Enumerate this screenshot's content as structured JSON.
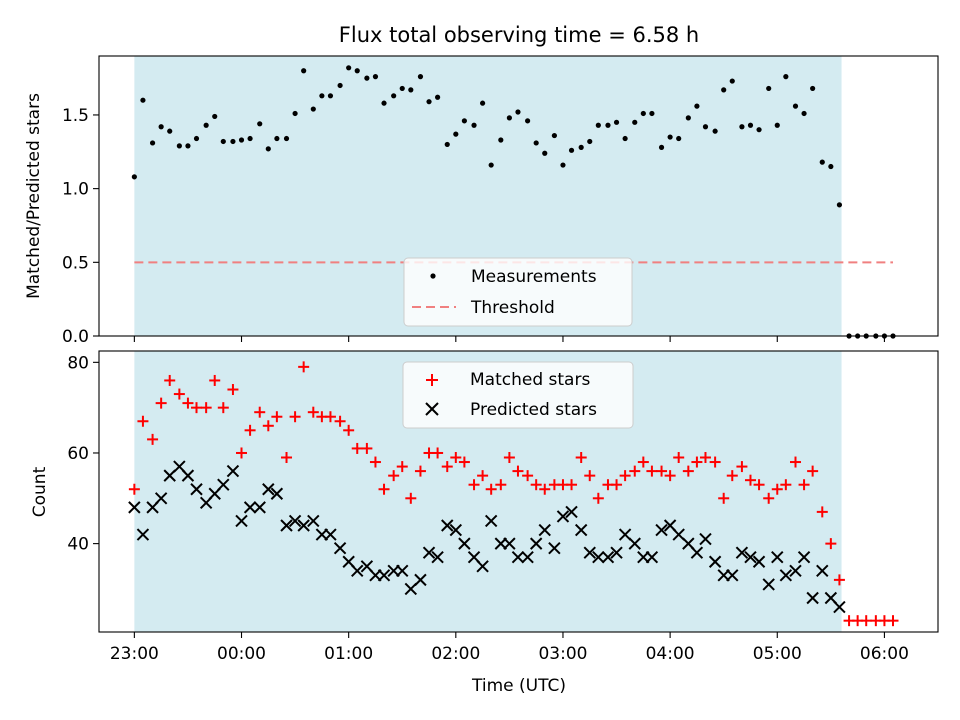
{
  "title": "Flux total observing time = 6.58 h",
  "colors": {
    "shade": "#d4ebf1",
    "measurement": "#000000",
    "threshold": "#f08080",
    "matched": "#ff0000",
    "predicted": "#000000"
  },
  "chart_data": [
    {
      "type": "scatter",
      "ylabel": "Matched/Predicted stars",
      "ylim": [
        0,
        1.9
      ],
      "yticks": [
        0.0,
        0.5,
        1.0,
        1.5
      ],
      "ytick_labels": [
        "0.0",
        "0.5",
        "1.0",
        "1.5"
      ],
      "xlim": [
        -0.33,
        7.5
      ],
      "shaded_span": [
        0.0,
        6.6
      ],
      "legend_placement": "lower-center",
      "series": [
        {
          "name": "Measurements",
          "marker": "dot",
          "x": [
            0.0,
            0.08,
            0.17,
            0.25,
            0.33,
            0.42,
            0.5,
            0.58,
            0.67,
            0.75,
            0.83,
            0.92,
            1.0,
            1.08,
            1.17,
            1.25,
            1.33,
            1.42,
            1.5,
            1.58,
            1.67,
            1.75,
            1.83,
            1.92,
            2.0,
            2.08,
            2.17,
            2.25,
            2.33,
            2.42,
            2.5,
            2.58,
            2.67,
            2.75,
            2.83,
            2.92,
            3.0,
            3.08,
            3.17,
            3.25,
            3.33,
            3.42,
            3.5,
            3.58,
            3.67,
            3.75,
            3.83,
            3.92,
            4.0,
            4.08,
            4.17,
            4.25,
            4.33,
            4.42,
            4.5,
            4.58,
            4.67,
            4.75,
            4.83,
            4.92,
            5.0,
            5.08,
            5.17,
            5.25,
            5.33,
            5.42,
            5.5,
            5.58,
            5.67,
            5.75,
            5.83,
            5.92,
            6.0,
            6.08,
            6.17,
            6.25,
            6.33,
            6.42,
            6.5,
            6.58,
            6.67,
            6.75,
            6.83,
            6.92,
            7.0,
            7.08
          ],
          "y": [
            1.08,
            1.6,
            1.31,
            1.42,
            1.39,
            1.29,
            1.29,
            1.34,
            1.43,
            1.49,
            1.32,
            1.32,
            1.33,
            1.34,
            1.44,
            1.27,
            1.34,
            1.34,
            1.51,
            1.8,
            1.54,
            1.63,
            1.63,
            1.7,
            1.82,
            1.8,
            1.75,
            1.76,
            1.58,
            1.63,
            1.68,
            1.67,
            1.76,
            1.59,
            1.62,
            1.3,
            1.37,
            1.46,
            1.43,
            1.58,
            1.16,
            1.33,
            1.48,
            1.52,
            1.46,
            1.31,
            1.24,
            1.36,
            1.16,
            1.26,
            1.28,
            1.32,
            1.43,
            1.43,
            1.45,
            1.34,
            1.45,
            1.51,
            1.51,
            1.28,
            1.35,
            1.34,
            1.48,
            1.56,
            1.42,
            1.39,
            1.67,
            1.73,
            1.42,
            1.43,
            1.4,
            1.68,
            1.43,
            1.76,
            1.56,
            1.51,
            1.68,
            1.18,
            1.15,
            0.89,
            0,
            0,
            0,
            0,
            0,
            0
          ]
        },
        {
          "name": "Threshold",
          "marker": "dashed-line",
          "x": [
            0.0,
            7.08
          ],
          "y": [
            0.5,
            0.5
          ]
        }
      ]
    },
    {
      "type": "scatter",
      "ylabel": "Count",
      "xlabel": "Time (UTC)",
      "ylim": [
        20.5,
        82.5
      ],
      "yticks": [
        40,
        60,
        80
      ],
      "ytick_labels": [
        "40",
        "60",
        "80"
      ],
      "xlim": [
        -0.33,
        7.5
      ],
      "xticks": [
        0,
        1,
        2,
        3,
        4,
        5,
        6,
        7
      ],
      "xtick_labels": [
        "23:00",
        "00:00",
        "01:00",
        "02:00",
        "03:00",
        "04:00",
        "05:00",
        "06:00"
      ],
      "shaded_span": [
        0.0,
        6.6
      ],
      "legend_placement": "upper-center",
      "series": [
        {
          "name": "Matched stars",
          "marker": "plus",
          "x": [
            0.0,
            0.08,
            0.17,
            0.25,
            0.33,
            0.42,
            0.5,
            0.58,
            0.67,
            0.75,
            0.83,
            0.92,
            1.0,
            1.08,
            1.17,
            1.25,
            1.33,
            1.42,
            1.5,
            1.58,
            1.67,
            1.75,
            1.83,
            1.92,
            2.0,
            2.08,
            2.17,
            2.25,
            2.33,
            2.42,
            2.5,
            2.58,
            2.67,
            2.75,
            2.83,
            2.92,
            3.0,
            3.08,
            3.17,
            3.25,
            3.33,
            3.42,
            3.5,
            3.58,
            3.67,
            3.75,
            3.83,
            3.92,
            4.0,
            4.08,
            4.17,
            4.25,
            4.33,
            4.42,
            4.5,
            4.58,
            4.67,
            4.75,
            4.83,
            4.92,
            5.0,
            5.08,
            5.17,
            5.25,
            5.33,
            5.42,
            5.5,
            5.58,
            5.67,
            5.75,
            5.83,
            5.92,
            6.0,
            6.08,
            6.17,
            6.25,
            6.33,
            6.42,
            6.5,
            6.58,
            6.67,
            6.75,
            6.83,
            6.92,
            7.0,
            7.08
          ],
          "y": [
            52,
            67,
            63,
            71,
            76,
            73,
            71,
            70,
            70,
            76,
            70,
            74,
            60,
            65,
            69,
            66,
            68,
            59,
            68,
            79,
            69,
            68,
            68,
            67,
            65,
            61,
            61,
            58,
            52,
            55,
            57,
            50,
            56,
            60,
            60,
            57,
            59,
            58,
            53,
            55,
            52,
            53,
            59,
            56,
            55,
            53,
            52,
            53,
            53,
            53,
            59,
            55,
            50,
            53,
            53,
            55,
            56,
            58,
            56,
            56,
            55,
            59,
            56,
            58,
            59,
            58,
            50,
            55,
            57,
            54,
            53,
            50,
            52,
            53,
            58,
            53,
            56,
            47,
            40,
            32,
            23,
            23,
            23,
            23,
            23,
            23
          ]
        },
        {
          "name": "Predicted stars",
          "marker": "x",
          "x": [
            0.0,
            0.08,
            0.17,
            0.25,
            0.33,
            0.42,
            0.5,
            0.58,
            0.67,
            0.75,
            0.83,
            0.92,
            1.0,
            1.08,
            1.17,
            1.25,
            1.33,
            1.42,
            1.5,
            1.58,
            1.67,
            1.75,
            1.83,
            1.92,
            2.0,
            2.08,
            2.17,
            2.25,
            2.33,
            2.42,
            2.5,
            2.58,
            2.67,
            2.75,
            2.83,
            2.92,
            3.0,
            3.08,
            3.17,
            3.25,
            3.33,
            3.42,
            3.5,
            3.58,
            3.67,
            3.75,
            3.83,
            3.92,
            4.0,
            4.08,
            4.17,
            4.25,
            4.33,
            4.42,
            4.5,
            4.58,
            4.67,
            4.75,
            4.83,
            4.92,
            5.0,
            5.08,
            5.17,
            5.25,
            5.33,
            5.42,
            5.5,
            5.58,
            5.67,
            5.75,
            5.83,
            5.92,
            6.0,
            6.08,
            6.17,
            6.25,
            6.33,
            6.42,
            6.5,
            6.58
          ],
          "y": [
            48,
            42,
            48,
            50,
            55,
            57,
            55,
            52,
            49,
            51,
            53,
            56,
            45,
            48,
            48,
            52,
            51,
            44,
            45,
            44,
            45,
            42,
            42,
            39,
            36,
            34,
            35,
            33,
            33,
            34,
            34,
            30,
            32,
            38,
            37,
            44,
            43,
            40,
            37,
            35,
            45,
            40,
            40,
            37,
            37,
            40,
            43,
            39,
            46,
            47,
            43,
            38,
            37,
            37,
            38,
            42,
            40,
            37,
            37,
            43,
            44,
            42,
            40,
            38,
            41,
            36,
            33,
            33,
            38,
            37,
            36,
            31,
            37,
            33,
            34,
            37,
            28,
            34,
            28,
            26
          ]
        }
      ]
    }
  ]
}
